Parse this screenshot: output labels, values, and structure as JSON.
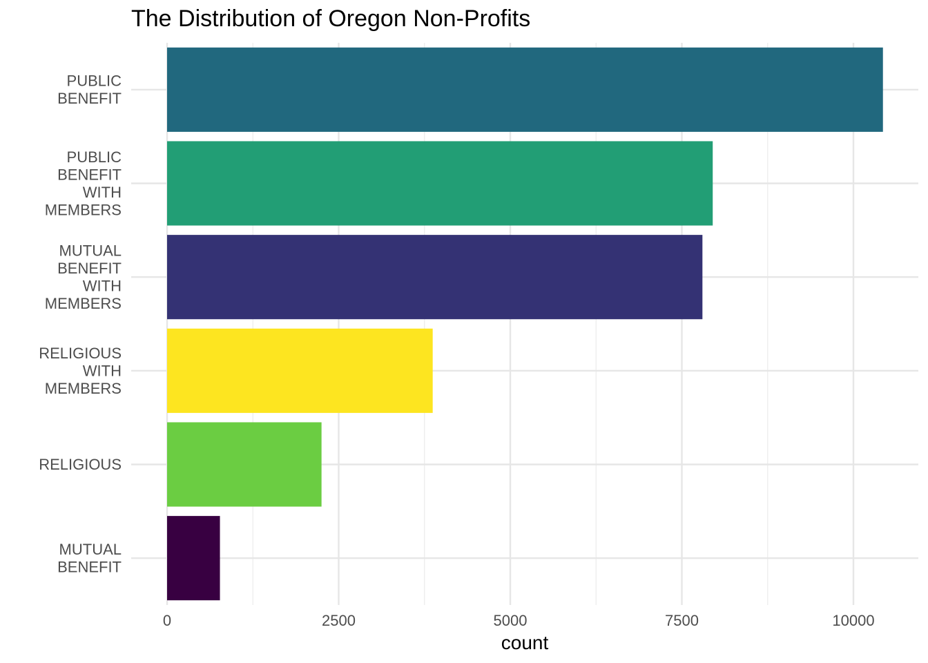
{
  "chart_data": {
    "type": "bar",
    "orientation": "horizontal",
    "title": "The Distribution of Oregon Non-Profits",
    "xlabel": "count",
    "ylabel": "",
    "xlim": [
      0,
      10400
    ],
    "x_ticks": [
      0,
      2500,
      5000,
      7500,
      10000
    ],
    "grid": true,
    "categories": [
      {
        "label_lines": [
          "PUBLIC",
          "BENEFIT"
        ],
        "value": 10430,
        "color": "#21687E"
      },
      {
        "label_lines": [
          "PUBLIC",
          "BENEFIT",
          "WITH",
          "MEMBERS"
        ],
        "value": 7950,
        "color": "#229E75"
      },
      {
        "label_lines": [
          "MUTUAL",
          "BENEFIT",
          "WITH",
          "MEMBERS"
        ],
        "value": 7800,
        "color": "#343274"
      },
      {
        "label_lines": [
          "RELIGIOUS",
          "WITH",
          "MEMBERS"
        ],
        "value": 3870,
        "color": "#FDE520"
      },
      {
        "label_lines": [
          "RELIGIOUS"
        ],
        "value": 2250,
        "color": "#6BCD42"
      },
      {
        "label_lines": [
          "MUTUAL",
          "BENEFIT"
        ],
        "value": 770,
        "color": "#380041"
      }
    ]
  }
}
